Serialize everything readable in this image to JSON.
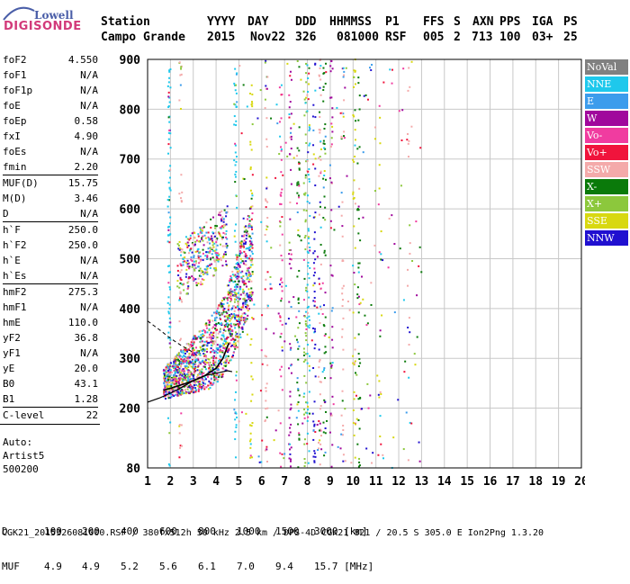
{
  "logo": {
    "line1": "Lowell",
    "line2": "DIGISONDE"
  },
  "header": {
    "labels": [
      "Station",
      "YYYY",
      "DAY",
      "DDD",
      "HHMMSS",
      "P1",
      "FFS",
      "S",
      "AXN",
      "PPS",
      "IGA",
      "PS"
    ],
    "values": [
      "Campo Grande",
      "2015",
      "Nov22",
      "326",
      "081000",
      "RSF",
      "005",
      "2",
      "713",
      "100",
      "03+",
      "25"
    ]
  },
  "params": [
    {
      "label": "foF2",
      "value": "4.550"
    },
    {
      "label": "foF1",
      "value": "N/A"
    },
    {
      "label": "foF1p",
      "value": "N/A"
    },
    {
      "label": "foE",
      "value": "N/A"
    },
    {
      "label": "foEp",
      "value": "0.58"
    },
    {
      "label": "fxI",
      "value": "4.90"
    },
    {
      "label": "foEs",
      "value": "N/A"
    },
    {
      "label": "fmin",
      "value": "2.20"
    },
    {
      "label": "MUF(D)",
      "value": "15.75"
    },
    {
      "label": "M(D)",
      "value": "3.46"
    },
    {
      "label": "D",
      "value": "N/A"
    },
    {
      "label": "h`F",
      "value": "250.0"
    },
    {
      "label": "h`F2",
      "value": "250.0"
    },
    {
      "label": "h`E",
      "value": "N/A"
    },
    {
      "label": "h`Es",
      "value": "N/A"
    },
    {
      "label": "hmF2",
      "value": "275.3"
    },
    {
      "label": "hmF1",
      "value": "N/A"
    },
    {
      "label": "hmE",
      "value": "110.0"
    },
    {
      "label": "yF2",
      "value": "36.8"
    },
    {
      "label": "yF1",
      "value": "N/A"
    },
    {
      "label": "yE",
      "value": "20.0"
    },
    {
      "label": "B0",
      "value": "43.1"
    },
    {
      "label": "B1",
      "value": "1.28"
    },
    {
      "label": "C-level",
      "value": "22"
    }
  ],
  "auto": {
    "line1": "Auto:",
    "line2": "Artist5",
    "line3": "500200"
  },
  "legend": [
    {
      "label": "NoVal",
      "color": "#808080"
    },
    {
      "label": "NNE",
      "color": "#1ec8ec"
    },
    {
      "label": "E",
      "color": "#3c9cec"
    },
    {
      "label": "W",
      "color": "#a0089c"
    },
    {
      "label": "Vo-",
      "color": "#f03ca0"
    },
    {
      "label": "Vo+",
      "color": "#f0143c"
    },
    {
      "label": "SSW",
      "color": "#f4aaaa"
    },
    {
      "label": "X-",
      "color": "#0a7a0a"
    },
    {
      "label": "X+",
      "color": "#8cc83c"
    },
    {
      "label": "SSE",
      "color": "#d8d810"
    },
    {
      "label": "NNW",
      "color": "#2010d0"
    }
  ],
  "chart_data": {
    "type": "scatter",
    "title": "",
    "xlabel": "",
    "ylabel": "",
    "xlim": [
      1,
      20
    ],
    "ylim": [
      80,
      900
    ],
    "xticks": [
      1,
      2,
      3,
      4,
      5,
      6,
      7,
      8,
      9,
      10,
      11,
      12,
      13,
      14,
      15,
      16,
      17,
      18,
      19,
      20
    ],
    "yticks": [
      80,
      200,
      300,
      400,
      500,
      600,
      700,
      800,
      900
    ],
    "grid": true,
    "legend_position": "right",
    "trace_profile": {
      "name": "",
      "x": [
        1.7,
        2.0,
        2.5,
        3.0,
        3.5,
        4.0,
        4.3,
        4.55
      ],
      "y": [
        236,
        240,
        247,
        255,
        265,
        280,
        300,
        330
      ]
    },
    "virtual_height_fit": {
      "name": "",
      "x": [
        1.0,
        1.5,
        2.0,
        2.5,
        3.0,
        3.5,
        4.0,
        4.5,
        4.7
      ],
      "y": [
        212,
        220,
        230,
        242,
        255,
        265,
        270,
        275,
        273
      ]
    },
    "upper_dashed_fit": {
      "name": "",
      "x": [
        1.0,
        1.5,
        2.0,
        2.5,
        3.0
      ],
      "y": [
        375,
        358,
        340,
        325,
        312
      ]
    }
  },
  "bottom": {
    "d_label": "D",
    "d_values": [
      "100",
      "200",
      "400",
      "600",
      "800",
      "1000",
      "1500",
      "3000 [km]"
    ],
    "muf_label": "MUF",
    "muf_values": [
      "4.9",
      "4.9",
      "5.2",
      "5.6",
      "6.1",
      "7.0",
      "9.4",
      "15.7 [MHz]"
    ]
  },
  "footer": "CGK21_2015326081000.RSF / 380fx512h 50 kHz 2.5 km / DPS-4D CGK21 821 / 20.5 S 305.0 E Ion2Png 1.3.20"
}
